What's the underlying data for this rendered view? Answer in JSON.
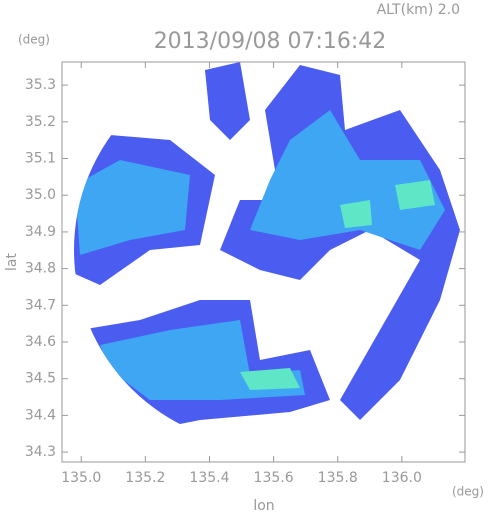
{
  "chart_data": {
    "type": "map",
    "title": "2013/09/08 07:16:42",
    "subtitle": "ALT(km) 2.0",
    "x_label": "lon",
    "x_unit": "(deg)",
    "y_label": "lat",
    "y_unit": "(deg)",
    "xlim": [
      134.94,
      136.197
    ],
    "ylim": [
      34.273,
      35.363
    ],
    "xticks": [
      {
        "value": 135,
        "label": "135.0"
      },
      {
        "value": 135.2,
        "label": "135.2"
      },
      {
        "value": 135.4,
        "label": "135.4"
      },
      {
        "value": 135.6,
        "label": "135.6"
      },
      {
        "value": 135.8,
        "label": "135.8"
      },
      {
        "value": 136,
        "label": "136.0"
      }
    ],
    "yticks": [
      {
        "value": 34.3,
        "label": "34.3"
      },
      {
        "value": 34.4,
        "label": "34.4"
      },
      {
        "value": 34.5,
        "label": "34.5"
      },
      {
        "value": 34.6,
        "label": "34.6"
      },
      {
        "value": 34.7,
        "label": "34.7"
      },
      {
        "value": 34.8,
        "label": "34.8"
      },
      {
        "value": 34.9,
        "label": "34.9"
      },
      {
        "value": 35,
        "label": "35.0"
      },
      {
        "value": 35.1,
        "label": "35.1"
      },
      {
        "value": 35.2,
        "label": "35.2"
      },
      {
        "value": 35.3,
        "label": "35.3"
      }
    ]
  }
}
